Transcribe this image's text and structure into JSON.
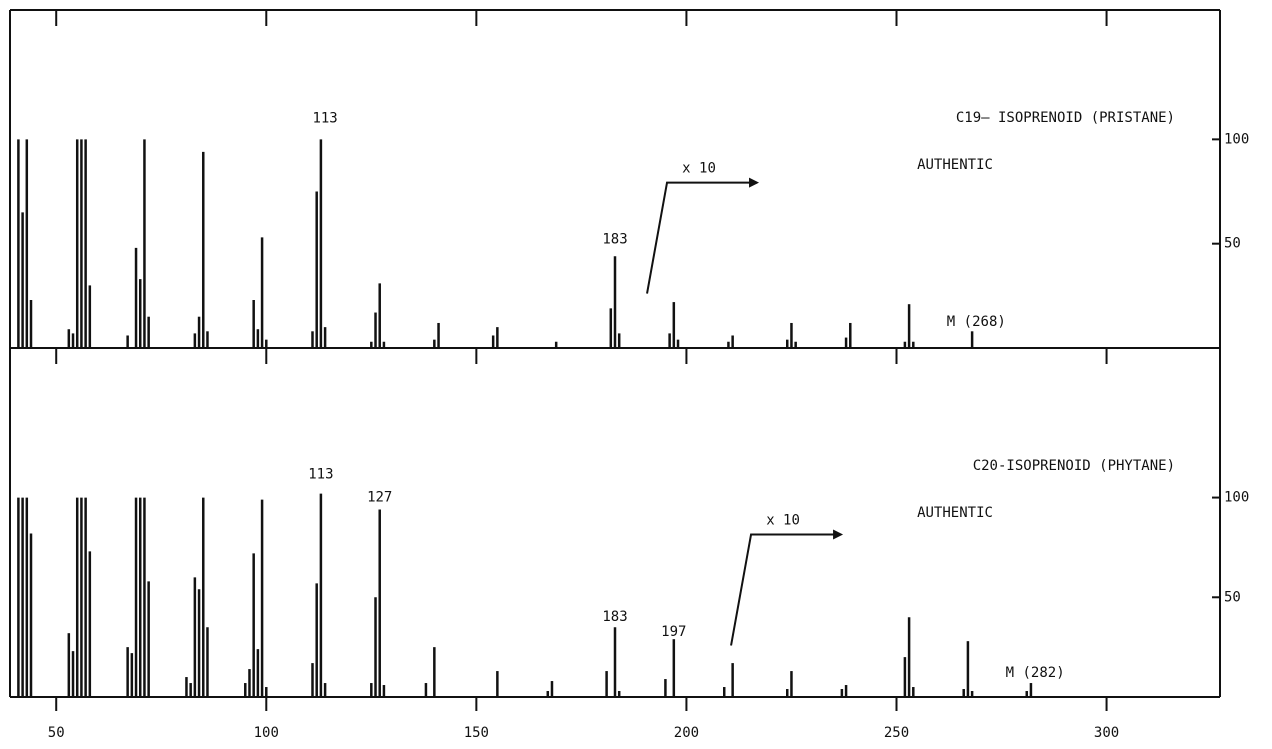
{
  "chart_data": [
    {
      "type": "bar",
      "title": "C19– ISOPRENOID (PRISTANE)",
      "subtitle": "AUTHENTIC",
      "xlim": [
        39,
        327
      ],
      "ylim": [
        0,
        162
      ],
      "yticks": [
        50,
        100
      ],
      "color": "#111111",
      "x": [
        41,
        42,
        43,
        44,
        53,
        54,
        55,
        56,
        57,
        58,
        67,
        69,
        70,
        71,
        72,
        83,
        84,
        85,
        86,
        97,
        98,
        99,
        100,
        111,
        112,
        113,
        114,
        125,
        126,
        127,
        128,
        140,
        141,
        154,
        155,
        169,
        182,
        183,
        184,
        196,
        197,
        198,
        210,
        211,
        224,
        225,
        226,
        238,
        239,
        252,
        253,
        254,
        268
      ],
      "values": [
        100,
        65,
        100,
        23,
        9,
        7,
        100,
        100,
        100,
        30,
        6,
        48,
        33,
        100,
        15,
        7,
        15,
        94,
        8,
        23,
        9,
        53,
        4,
        8,
        75,
        100,
        10,
        3,
        17,
        31,
        3,
        4,
        12,
        6,
        10,
        3,
        19,
        44,
        7,
        7,
        22,
        4,
        3,
        6,
        4,
        12,
        3,
        5,
        12,
        3,
        21,
        3,
        8
      ],
      "annotations": [
        {
          "text": "113",
          "x": 114,
          "y": 110
        },
        {
          "text": "183",
          "x": 183,
          "y": 52
        },
        {
          "text": "M (268)",
          "x": 269,
          "y": 12.5
        },
        {
          "text": "x 10",
          "x": 203,
          "y": 86,
          "arrow": true
        }
      ]
    },
    {
      "type": "bar",
      "title": "C20-ISOPRENOID (PHYTANE)",
      "subtitle": "AUTHENTIC",
      "xlim": [
        39,
        327
      ],
      "ylim": [
        0,
        175
      ],
      "yticks": [
        50,
        100
      ],
      "xticks": [
        50,
        100,
        150,
        200,
        250,
        300
      ],
      "color": "#111111",
      "x": [
        41,
        42,
        43,
        44,
        53,
        54,
        55,
        56,
        57,
        58,
        67,
        68,
        69,
        70,
        71,
        72,
        81,
        82,
        83,
        84,
        85,
        86,
        95,
        96,
        97,
        98,
        99,
        100,
        111,
        112,
        113,
        114,
        125,
        126,
        127,
        128,
        138,
        140,
        155,
        167,
        168,
        181,
        183,
        184,
        195,
        197,
        209,
        211,
        224,
        225,
        237,
        238,
        252,
        253,
        254,
        266,
        267,
        268,
        281,
        282
      ],
      "values": [
        100,
        100,
        100,
        82,
        32,
        23,
        100,
        100,
        100,
        73,
        25,
        22,
        100,
        100,
        100,
        58,
        10,
        7,
        60,
        54,
        100,
        35,
        7,
        14,
        72,
        24,
        99,
        5,
        17,
        57,
        102,
        7,
        7,
        50,
        94,
        6,
        7,
        25,
        13,
        3,
        8,
        13,
        35,
        3,
        9,
        29,
        5,
        17,
        4,
        13,
        4,
        6,
        20,
        40,
        5,
        4,
        28,
        3,
        3,
        7
      ],
      "annotations": [
        {
          "text": "113",
          "x": 113,
          "y": 111.5
        },
        {
          "text": "127",
          "x": 127,
          "y": 100
        },
        {
          "text": "183",
          "x": 183,
          "y": 40
        },
        {
          "text": "197",
          "x": 197,
          "y": 32.5
        },
        {
          "text": "M (282)",
          "x": 283,
          "y": 12
        },
        {
          "text": "x 10",
          "x": 223,
          "y": 88.5,
          "arrow": true
        }
      ]
    }
  ]
}
